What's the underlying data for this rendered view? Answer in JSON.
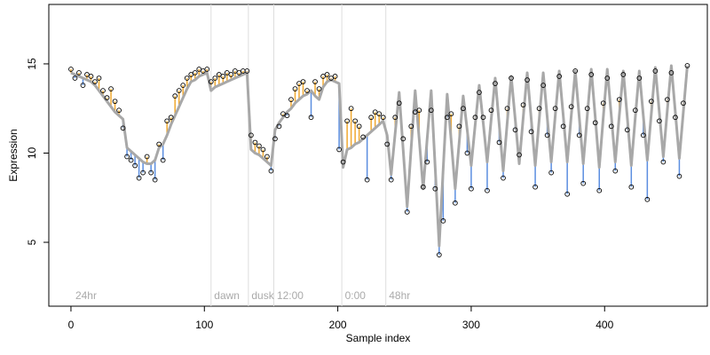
{
  "chart_data": {
    "type": "scatter",
    "x_label": "Sample index",
    "y_label": "Expression",
    "xlim": [
      -16.6,
      477
    ],
    "ylim": [
      1.42,
      18.33
    ],
    "xticks": [
      0,
      100,
      200,
      300,
      400
    ],
    "yticks": [
      5,
      10,
      15
    ],
    "vlines": [
      105,
      133,
      152,
      203,
      236
    ],
    "annotations": [
      {
        "x": 2,
        "label": "24hr"
      },
      {
        "x": 106,
        "label": "dawn"
      },
      {
        "x": 134,
        "label": "dusk"
      },
      {
        "x": 153,
        "label": "12:00"
      },
      {
        "x": 204,
        "label": "0:00"
      },
      {
        "x": 237,
        "label": "48hr"
      }
    ],
    "residual_colors": {
      "above": "#f0a830",
      "below": "#5b8ee0"
    },
    "x": [
      0,
      3,
      6,
      9,
      12,
      15,
      18,
      21,
      24,
      27,
      30,
      33,
      36,
      39,
      42,
      45,
      48,
      51,
      54,
      57,
      60,
      63,
      66,
      69,
      72,
      75,
      78,
      81,
      84,
      87,
      90,
      93,
      96,
      99,
      102,
      105,
      108,
      111,
      114,
      117,
      120,
      123,
      126,
      129,
      132,
      135,
      138,
      141,
      144,
      147,
      150,
      153,
      156,
      159,
      162,
      165,
      168,
      171,
      174,
      177,
      180,
      183,
      186,
      189,
      192,
      195,
      198,
      201,
      204,
      207,
      210,
      213,
      216,
      219,
      222,
      225,
      228,
      231,
      234,
      237,
      240,
      243,
      246,
      249,
      252,
      255,
      258,
      261,
      264,
      267,
      270,
      273,
      276,
      279,
      282,
      285,
      288,
      291,
      294,
      297,
      300,
      303,
      306,
      309,
      312,
      315,
      318,
      321,
      324,
      327,
      330,
      333,
      336,
      339,
      342,
      345,
      348,
      351,
      354,
      357,
      360,
      363,
      366,
      369,
      372,
      375,
      378,
      381,
      384,
      387,
      390,
      393,
      396,
      399,
      402,
      405,
      408,
      411,
      414,
      417,
      420,
      423,
      426,
      429,
      432,
      435,
      438,
      441,
      444,
      447,
      450,
      453,
      456,
      459,
      462
    ],
    "fit": {
      "color": "#a8a8a8",
      "values": [
        14.5,
        14.4,
        14.3,
        14.2,
        14.1,
        14.0,
        13.8,
        13.5,
        13.2,
        12.9,
        12.6,
        12.3,
        12.1,
        11.9,
        10.3,
        10.1,
        9.9,
        9.7,
        9.5,
        9.4,
        9.4,
        9.6,
        10.3,
        10.5,
        11.0,
        11.6,
        12.1,
        12.6,
        13.1,
        13.6,
        14.0,
        14.1,
        14.3,
        14.4,
        14.5,
        13.5,
        13.7,
        13.8,
        13.9,
        14.0,
        14.1,
        14.2,
        14.3,
        14.4,
        14.5,
        10.2,
        10.0,
        9.9,
        9.7,
        9.5,
        9.3,
        11.3,
        11.7,
        12.0,
        12.3,
        12.5,
        12.8,
        13.0,
        13.2,
        13.3,
        13.5,
        13.2,
        13.0,
        13.7,
        14.0,
        14.1,
        14.0,
        13.9,
        9.2,
        10.2,
        10.3,
        10.5,
        10.6,
        10.8,
        11.0,
        11.2,
        11.4,
        11.6,
        11.8,
        11.0,
        8.8,
        11.1,
        13.4,
        10.2,
        7.0,
        10.3,
        13.5,
        10.8,
        8.0,
        10.8,
        13.5,
        9.2,
        4.8,
        9.1,
        13.3,
        10.7,
        8.0,
        10.6,
        13.2,
        11.3,
        9.3,
        11.6,
        13.8,
        11.7,
        9.5,
        11.9,
        14.2,
        11.6,
        9.0,
        11.7,
        14.3,
        11.9,
        9.4,
        12.0,
        14.5,
        11.9,
        9.3,
        11.9,
        14.5,
        12.0,
        9.5,
        12.1,
        14.6,
        12.1,
        9.5,
        12.1,
        14.6,
        12.0,
        9.4,
        12.1,
        14.7,
        12.0,
        9.2,
        12.0,
        14.7,
        12.1,
        9.5,
        12.1,
        14.6,
        12.0,
        9.3,
        12.0,
        14.6,
        12.1,
        9.6,
        12.2,
        14.8,
        12.3,
        9.8,
        12.4,
        14.9,
        12.3,
        9.7,
        12.3,
        14.9
      ]
    },
    "points": {
      "color": "#000000",
      "values": [
        14.7,
        14.2,
        14.5,
        13.8,
        14.4,
        14.3,
        14.0,
        14.2,
        13.5,
        13.1,
        13.6,
        12.9,
        12.4,
        11.4,
        9.8,
        9.6,
        9.3,
        8.6,
        8.9,
        9.8,
        8.9,
        8.5,
        10.5,
        9.6,
        11.8,
        12.0,
        13.2,
        13.5,
        13.8,
        14.2,
        14.4,
        14.5,
        14.7,
        14.6,
        14.7,
        14.0,
        14.2,
        14.4,
        14.3,
        14.5,
        14.4,
        14.6,
        14.5,
        14.6,
        14.6,
        11.0,
        10.6,
        10.4,
        10.2,
        9.8,
        9.0,
        10.8,
        11.5,
        12.2,
        12.1,
        13.0,
        13.6,
        13.9,
        14.0,
        13.5,
        12.0,
        14.0,
        13.6,
        14.3,
        14.4,
        14.2,
        14.3,
        10.2,
        9.5,
        11.8,
        12.5,
        11.8,
        11.5,
        10.9,
        8.5,
        12.0,
        12.3,
        12.2,
        12.0,
        10.5,
        8.5,
        12.0,
        12.8,
        10.8,
        6.7,
        11.5,
        12.3,
        12.4,
        8.1,
        9.5,
        12.4,
        8.0,
        4.3,
        6.2,
        12.0,
        12.2,
        7.2,
        11.5,
        12.5,
        10.0,
        8.0,
        12.0,
        13.4,
        12.0,
        7.9,
        12.4,
        13.9,
        10.6,
        8.6,
        12.5,
        14.2,
        11.3,
        9.9,
        12.7,
        14.1,
        11.2,
        8.1,
        12.5,
        13.8,
        11.0,
        8.9,
        12.5,
        14.3,
        11.5,
        7.7,
        12.6,
        14.6,
        11.0,
        8.3,
        12.5,
        14.4,
        11.7,
        7.9,
        12.8,
        14.2,
        11.5,
        9.0,
        13.0,
        14.4,
        11.3,
        8.1,
        12.4,
        14.2,
        11.0,
        7.4,
        12.9,
        14.6,
        11.8,
        9.5,
        13.0,
        14.5,
        12.0,
        8.7,
        12.8,
        14.9
      ]
    }
  }
}
